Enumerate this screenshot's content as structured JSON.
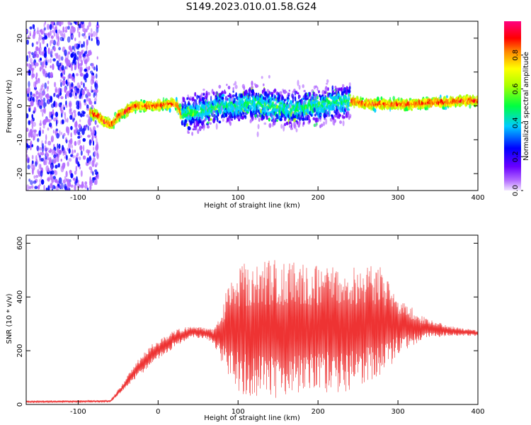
{
  "title": "S149.2023.010.01.58.G24",
  "chart_data": [
    {
      "type": "heatmap",
      "title": "S149.2023.010.01.58.G24",
      "xlabel": "Height of straight line (km)",
      "ylabel": "Frequency (Hz)",
      "xlim": [
        -165,
        400
      ],
      "ylim": [
        -25,
        25
      ],
      "xticks": [
        -100,
        0,
        100,
        200,
        300,
        400
      ],
      "yticks": [
        -20,
        -10,
        0,
        10,
        20
      ],
      "colorbar": {
        "label": "Normalized spectral amplitude",
        "ticks": [
          "0.0",
          "0.2",
          "0.4",
          "0.6",
          "0.8"
        ],
        "range": [
          0,
          1
        ]
      },
      "ridge": {
        "x": [
          -85,
          -75,
          -65,
          -58,
          -50,
          -40,
          -30,
          -20,
          -10,
          0,
          10,
          20,
          25,
          30,
          40,
          60,
          80,
          100,
          120,
          140,
          160,
          180,
          200,
          220,
          240,
          260,
          280,
          300,
          320,
          340,
          360,
          380,
          400
        ],
        "freq": [
          -2,
          -3,
          -5,
          -5.5,
          -3,
          -1.5,
          0,
          0,
          0,
          0,
          0.5,
          0.5,
          0,
          -3,
          -2,
          -1,
          0,
          0,
          1,
          0,
          -1,
          -0.5,
          0,
          1,
          1.5,
          0.5,
          0.5,
          0.5,
          0.5,
          1,
          1,
          1.5,
          1.5
        ]
      },
      "noise_region": [
        -165,
        -85
      ],
      "spread_region": [
        30,
        240
      ]
    },
    {
      "type": "line",
      "xlabel": "Height of straight line (km)",
      "ylabel": "SNR (10 * v/v)",
      "xlim": [
        -165,
        400
      ],
      "ylim": [
        0,
        630
      ],
      "xticks": [
        -100,
        0,
        100,
        200,
        300,
        400
      ],
      "yticks": [
        0,
        200,
        400,
        600
      ],
      "color": "#ee3333",
      "envelope": {
        "x": [
          -165,
          -60,
          -45,
          -30,
          -10,
          10,
          20,
          40,
          60,
          70,
          85,
          100,
          140,
          200,
          240,
          280,
          300,
          330,
          360,
          400
        ],
        "mean": [
          10,
          12,
          60,
          120,
          180,
          225,
          245,
          270,
          265,
          250,
          270,
          280,
          280,
          280,
          285,
          300,
          295,
          285,
          275,
          265
        ],
        "amplitude": [
          5,
          5,
          15,
          30,
          40,
          35,
          35,
          20,
          20,
          30,
          150,
          240,
          260,
          240,
          240,
          210,
          110,
          45,
          20,
          10
        ]
      }
    }
  ]
}
